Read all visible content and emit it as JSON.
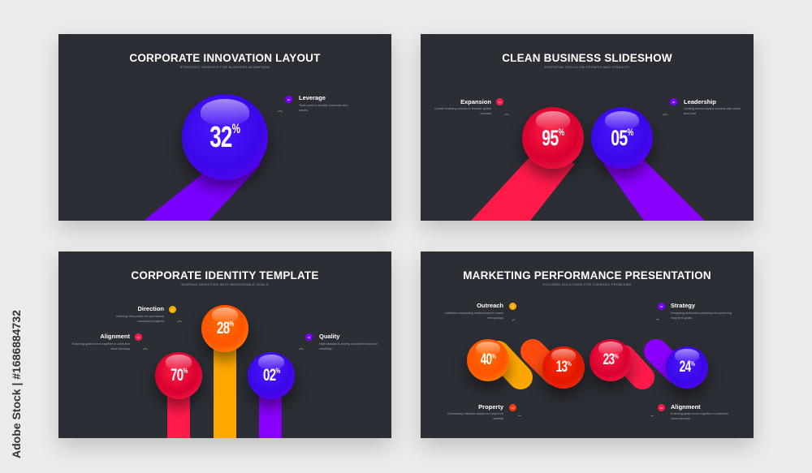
{
  "side_credit": "Adobe Stock | #1686884732",
  "colors": {
    "background": "#ebebeb",
    "panel": "#2b2e35",
    "purple": "#7a00ff",
    "red": "#ff1a4a",
    "orange": "#ff7a00",
    "yellow": "#ffa800"
  },
  "slides": [
    {
      "title": "CORPORATE INNOVATION LAYOUT",
      "subtitle": "STRATEGIC INSIGHTS FOR BUSINESS ADVANTAGE",
      "spheres": [
        {
          "value": "32",
          "unit": "%"
        }
      ],
      "items": [
        {
          "badge": "01",
          "label": "Leverage",
          "desc": "Tools used to amplify outcomes and results"
        }
      ]
    },
    {
      "title": "CLEAN BUSINESS SLIDESHOW",
      "subtitle": "ESSENTIAL FOCUS ON GROWTH AND STABILITY",
      "spheres": [
        {
          "value": "95",
          "unit": "%"
        },
        {
          "value": "05",
          "unit": "%"
        }
      ],
      "items": [
        {
          "badge": "01",
          "label": "Expansion",
          "desc": "Growth enabling access to broader global markets"
        },
        {
          "badge": "02",
          "label": "Leadership",
          "desc": "Guiding teams toward success with vision and trust"
        }
      ]
    },
    {
      "title": "CORPORATE IDENTITY TEMPLATE",
      "subtitle": "SHAPING DIRECTION WITH MEASURABLE GOALS",
      "spheres": [
        {
          "value": "70",
          "unit": "%"
        },
        {
          "value": "28",
          "unit": "%"
        },
        {
          "value": "02",
          "unit": "%"
        }
      ],
      "items": [
        {
          "badge": "01",
          "label": "Direction",
          "desc": "Defining clear paths for operational consistent progress"
        },
        {
          "badge": "02",
          "label": "Alignment",
          "desc": "Ensuring goals move together in collective clear harmony"
        },
        {
          "badge": "03",
          "label": "Quality",
          "desc": "High standards driving consistent trust and credibility"
        }
      ]
    },
    {
      "title": "MARKETING PERFORMANCE PRESENTATION",
      "subtitle": "FOCUSED SOLUTIONS FOR COMPLEX PROBLEMS",
      "spheres": [
        {
          "value": "40",
          "unit": "%"
        },
        {
          "value": "13",
          "unit": "%"
        },
        {
          "value": "23",
          "unit": "%"
        },
        {
          "value": "24",
          "unit": "%"
        }
      ],
      "items": [
        {
          "badge": "01",
          "label": "Outreach",
          "desc": "Initiatives expanding relationships to reach new groups"
        },
        {
          "badge": "02",
          "label": "Property",
          "desc": "Overseeing valuable assets for long term stability"
        },
        {
          "badge": "03",
          "label": "Alignment",
          "desc": "Ensuring goals move together in collective clear harmony"
        },
        {
          "badge": "04",
          "label": "Strategy",
          "desc": "Designing actionable pathways for achieving long term goals"
        }
      ]
    }
  ]
}
